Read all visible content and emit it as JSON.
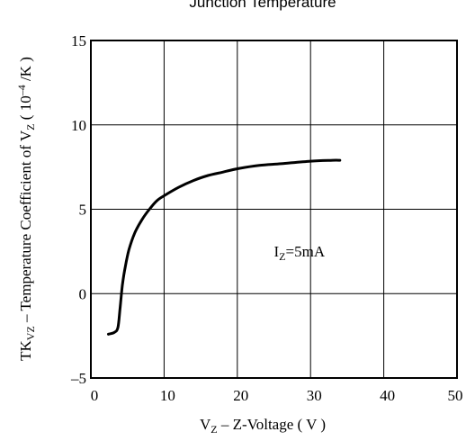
{
  "chart_data": {
    "type": "line",
    "title": "Junction Temperature",
    "xlabel": {
      "pre": "V",
      "sub": "Z",
      "post": " – Z-Voltage ( V )"
    },
    "ylabel": {
      "pre": "TK",
      "sub1": "VZ",
      "mid": " – Temperature Coefficient of V",
      "sub2": "Z",
      "post": " ( 10",
      "sup": "–4",
      "tail": " /K )"
    },
    "xlim": [
      0,
      50
    ],
    "ylim": [
      -5,
      15
    ],
    "x_ticks": [
      0,
      10,
      20,
      30,
      40,
      50
    ],
    "x_tick_labels": [
      "0",
      "10",
      "20",
      "30",
      "40",
      "50"
    ],
    "y_ticks": [
      -5,
      0,
      5,
      10,
      15
    ],
    "y_tick_labels": [
      "–5",
      "0",
      "5",
      "10",
      "15"
    ],
    "grid": true,
    "annotation": {
      "pre": "I",
      "sub": "Z",
      "post": "=5mA",
      "x": 25,
      "y": 2.2
    },
    "series": [
      {
        "color": "#000000",
        "x": [
          2.4,
          3.2,
          3.7,
          4.0,
          4.3,
          4.7,
          5.2,
          6.0,
          7.0,
          8.0,
          9.0,
          10.0,
          12.0,
          14.0,
          16.0,
          18.0,
          20.0,
          23.0,
          26.0,
          30.0,
          33.0,
          34.0
        ],
        "y": [
          -2.4,
          -2.3,
          -2.0,
          -0.8,
          0.5,
          1.6,
          2.6,
          3.6,
          4.4,
          5.0,
          5.5,
          5.8,
          6.3,
          6.7,
          7.0,
          7.2,
          7.4,
          7.6,
          7.7,
          7.85,
          7.9,
          7.9
        ]
      }
    ]
  }
}
